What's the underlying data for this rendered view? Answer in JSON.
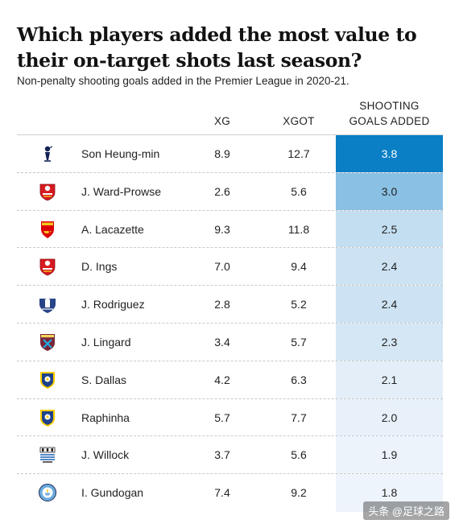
{
  "title": "Which players added the most value to their on-target shots last season?",
  "subtitle": "Non-penalty shooting goals added in the Premier League in 2020-21.",
  "headers": {
    "xg": "XG",
    "xgot": "XGOT",
    "ga_line1": "SHOOTING",
    "ga_line2": "GOALS ADDED"
  },
  "watermark": "头条 @足球之路",
  "colors": {
    "scale_max": "#0a7fc6",
    "scale_min": "#eef4fb"
  },
  "chart_data": {
    "type": "table",
    "title": "Which players added the most value to their on-target shots last season?",
    "subtitle": "Non-penalty shooting goals added in the Premier League in 2020-21.",
    "columns": [
      "",
      "",
      "XG",
      "XGOT",
      "SHOOTING GOALS ADDED"
    ],
    "rows": [
      {
        "club_icon": "tottenham-crest-icon",
        "player": "Son Heung-min",
        "xg": "8.9",
        "xgot": "12.7",
        "ga": "3.8"
      },
      {
        "club_icon": "southampton-crest-icon",
        "player": "J. Ward-Prowse",
        "xg": "2.6",
        "xgot": "5.6",
        "ga": "3.0"
      },
      {
        "club_icon": "arsenal-crest-icon",
        "player": "A. Lacazette",
        "xg": "9.3",
        "xgot": "11.8",
        "ga": "2.5"
      },
      {
        "club_icon": "southampton-crest-icon",
        "player": "D. Ings",
        "xg": "7.0",
        "xgot": "9.4",
        "ga": "2.4"
      },
      {
        "club_icon": "everton-crest-icon",
        "player": "J. Rodriguez",
        "xg": "2.8",
        "xgot": "5.2",
        "ga": "2.4"
      },
      {
        "club_icon": "westham-crest-icon",
        "player": "J. Lingard",
        "xg": "3.4",
        "xgot": "5.7",
        "ga": "2.3"
      },
      {
        "club_icon": "leeds-crest-icon",
        "player": "S. Dallas",
        "xg": "4.2",
        "xgot": "6.3",
        "ga": "2.1"
      },
      {
        "club_icon": "leeds-crest-icon",
        "player": "Raphinha",
        "xg": "5.7",
        "xgot": "7.7",
        "ga": "2.0"
      },
      {
        "club_icon": "newcastle-crest-icon",
        "player": "J. Willock",
        "xg": "3.7",
        "xgot": "5.6",
        "ga": "1.9"
      },
      {
        "club_icon": "mancity-crest-icon",
        "player": "I. Gundogan",
        "xg": "7.4",
        "xgot": "9.2",
        "ga": "1.8"
      }
    ]
  }
}
